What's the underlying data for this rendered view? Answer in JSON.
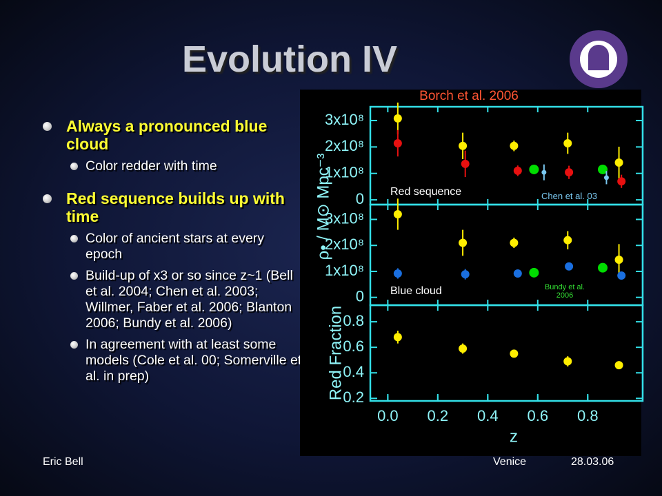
{
  "title": "Evolution IV",
  "bullets": [
    {
      "text": "Always a pronounced blue cloud",
      "sub": [
        "Color redder with time"
      ]
    },
    {
      "text": "Red sequence builds up with time",
      "sub": [
        "Color of ancient stars at every epoch",
        "Build-up of x3 or so since z~1 (Bell et al. 2004; Chen et al. 2003; Willmer, Faber et al. 2006; Blanton 2006; Bundy et al. 2006)",
        "In agreement with at least some models (Cole et al. 00; Somerville et al. in prep)"
      ]
    }
  ],
  "footer": {
    "left": "Eric Bell",
    "center": "Venice",
    "right": "28.03.06"
  },
  "chart_data": [
    {
      "type": "scatter",
      "title": "Borch et al. 2006",
      "ylabel": "ρ• / M⊙ Mpc⁻³",
      "annotations": [
        "Red sequence",
        "Chen et al. 03"
      ],
      "xlim": [
        -0.07,
        1.02
      ],
      "ylim": [
        -18000000,
        352000000
      ],
      "yticks": [
        0,
        {
          "value": 100000000,
          "label": "1x10⁸"
        },
        {
          "value": 200000000,
          "label": "2x10⁸"
        },
        {
          "value": 300000000,
          "label": "3x10⁸"
        }
      ],
      "series": [
        {
          "color": "#ffee00",
          "x": [
            0.04,
            0.3,
            0.505,
            0.72,
            0.925
          ],
          "values": [
            308000000,
            204000000,
            204000000,
            214000000,
            141000000
          ],
          "errors": [
            60000000,
            50000000,
            20000000,
            40000000,
            60000000
          ]
        },
        {
          "color": "#e81010",
          "x": [
            0.04,
            0.31,
            0.52,
            0.725,
            0.935
          ],
          "values": [
            214000000,
            136000000,
            110000000,
            104000000,
            70000000
          ],
          "errors": [
            50000000,
            50000000,
            20000000,
            25000000,
            25000000
          ]
        },
        {
          "color": "#00dd00",
          "x": [
            0.585,
            0.86
          ],
          "values": [
            115000000,
            115000000
          ]
        },
        {
          "color": "#7ac8f0",
          "x": [
            0.625,
            0.875
          ],
          "values": [
            104000000,
            84000000
          ],
          "errors": [
            30000000,
            25000000
          ]
        }
      ]
    },
    {
      "type": "scatter",
      "annotations": [
        "Blue cloud",
        "Bundy et al. 2006"
      ],
      "xlim": [
        -0.07,
        1.02
      ],
      "ylim": [
        -30000000,
        357000000
      ],
      "yticks": [
        0,
        {
          "value": 100000000,
          "label": "1x10⁸"
        },
        {
          "value": 200000000,
          "label": "2x10⁸"
        },
        {
          "value": 300000000,
          "label": "3x10⁸"
        }
      ],
      "series": [
        {
          "color": "#ffee00",
          "x": [
            0.04,
            0.3,
            0.505,
            0.72,
            0.925
          ],
          "values": [
            320000000,
            210000000,
            210000000,
            220000000,
            145000000
          ],
          "errors": [
            60000000,
            50000000,
            20000000,
            35000000,
            60000000
          ]
        },
        {
          "color": "#1a6fe0",
          "x": [
            0.04,
            0.31,
            0.52,
            0.725,
            0.935
          ],
          "values": [
            92000000,
            89000000,
            92000000,
            119000000,
            84000000
          ],
          "errors": [
            20000000,
            20000000,
            10000000,
            10000000,
            15000000
          ]
        },
        {
          "color": "#00dd00",
          "x": [
            0.585,
            0.86
          ],
          "values": [
            95000000,
            114000000
          ]
        }
      ]
    },
    {
      "type": "scatter",
      "ylabel": "Red Fraction",
      "xlabel": "z",
      "xlim": [
        -0.07,
        1.02
      ],
      "ylim": [
        0.18,
        0.93
      ],
      "xticks": [
        {
          "value": 0,
          "label": "0.0"
        },
        0.2,
        0.4,
        0.6,
        0.8
      ],
      "yticks": [
        0.2,
        0.4,
        0.6,
        0.8
      ],
      "series": [
        {
          "color": "#ffee00",
          "x": [
            0.04,
            0.3,
            0.505,
            0.72,
            0.925
          ],
          "values": [
            0.68,
            0.59,
            0.55,
            0.49,
            0.46
          ],
          "errors": [
            0.05,
            0.04,
            0.02,
            0.04,
            0.03
          ]
        }
      ]
    }
  ]
}
